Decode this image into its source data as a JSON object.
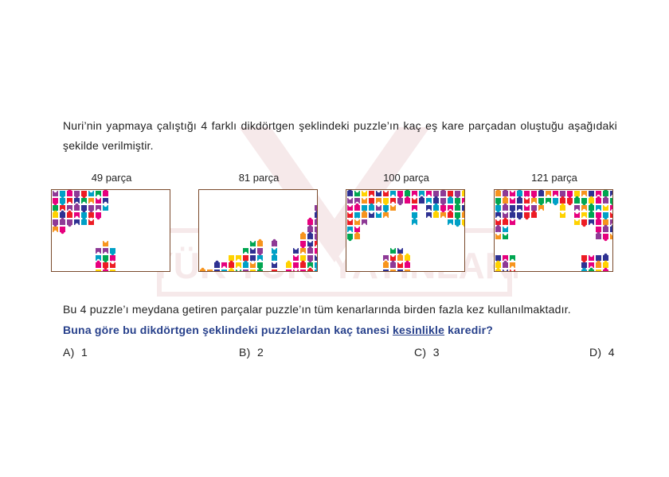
{
  "question": {
    "text": "Nuri’nin yapmaya çalıştığı 4 farklı dikdörtgen şeklindeki puzzle’ın kaç eş kare parçadan oluştuğu aşağıdaki şekilde verilmiştir."
  },
  "watermark": {
    "text_left": "YÜK YÜK",
    "text_right": "YAYINLARI"
  },
  "panels": [
    {
      "label": "49 parça"
    },
    {
      "label": "81 parça"
    },
    {
      "label": "100 parça"
    },
    {
      "label": "121 parça"
    }
  ],
  "statement": "Bu 4 puzzle’ı meydana getiren parçalar puzzle’ın tüm kenarlarında birden fazla kez kullanılmaktadır.",
  "ask": {
    "before": "Buna göre bu dikdörtgen şeklindeki puzzlelardan kaç tanesi ",
    "underlined": "kesinlikle",
    "after": " karedir?"
  },
  "options": [
    {
      "letter": "A)",
      "value": "1"
    },
    {
      "letter": "B)",
      "value": "2"
    },
    {
      "letter": "C)",
      "value": "3"
    },
    {
      "letter": "D)",
      "value": "4"
    }
  ],
  "colors": {
    "frame": "#7a4a2c",
    "question_blue": "#27408b",
    "pieces": [
      "#e6007e",
      "#00a0c6",
      "#ffd200",
      "#8e3a96",
      "#00a651",
      "#ed1c24",
      "#f7941d",
      "#2e3192"
    ]
  }
}
